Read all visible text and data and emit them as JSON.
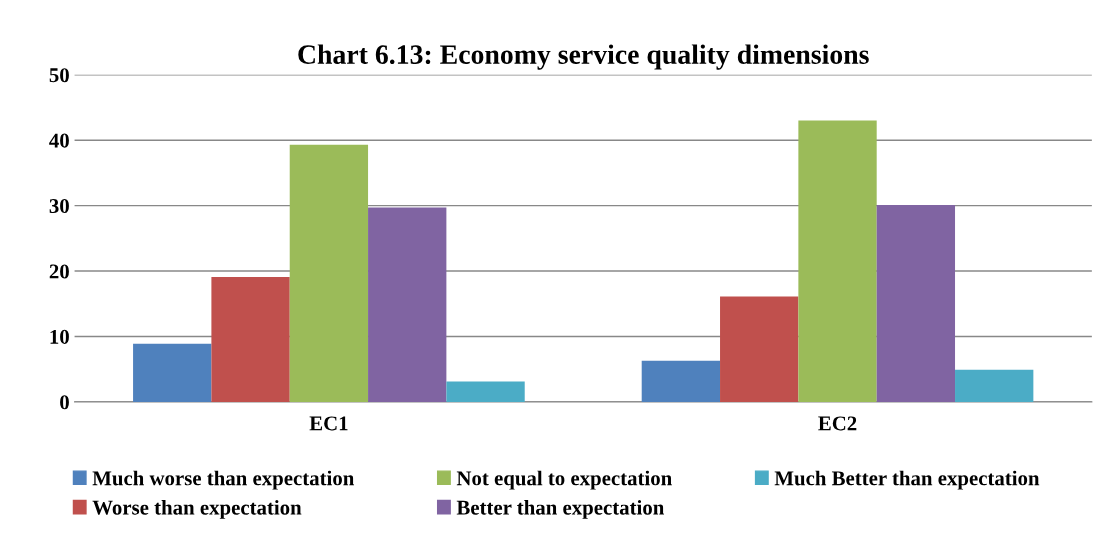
{
  "chart_data": {
    "type": "bar",
    "title": "Chart 6.13: Economy service quality dimensions",
    "categories": [
      "EC1",
      "EC2"
    ],
    "series": [
      {
        "name": "Much worse than expectation",
        "color": "#4f81bd",
        "values": [
          8.9,
          6.3
        ]
      },
      {
        "name": "Worse than expectation",
        "color": "#c0504d",
        "values": [
          19.1,
          16.1
        ]
      },
      {
        "name": "Not equal to expectation",
        "color": "#9bbb59",
        "values": [
          39.3,
          43.0
        ]
      },
      {
        "name": "Better than expectation",
        "color": "#8064a2",
        "values": [
          29.7,
          30.1
        ]
      },
      {
        "name": "Much Better than expectation",
        "color": "#4bacc6",
        "values": [
          3.1,
          4.9
        ]
      }
    ],
    "ylim": [
      0,
      50
    ],
    "yticks": [
      0,
      10,
      20,
      30,
      40,
      50
    ],
    "grid": "y",
    "legend": "bottom"
  }
}
